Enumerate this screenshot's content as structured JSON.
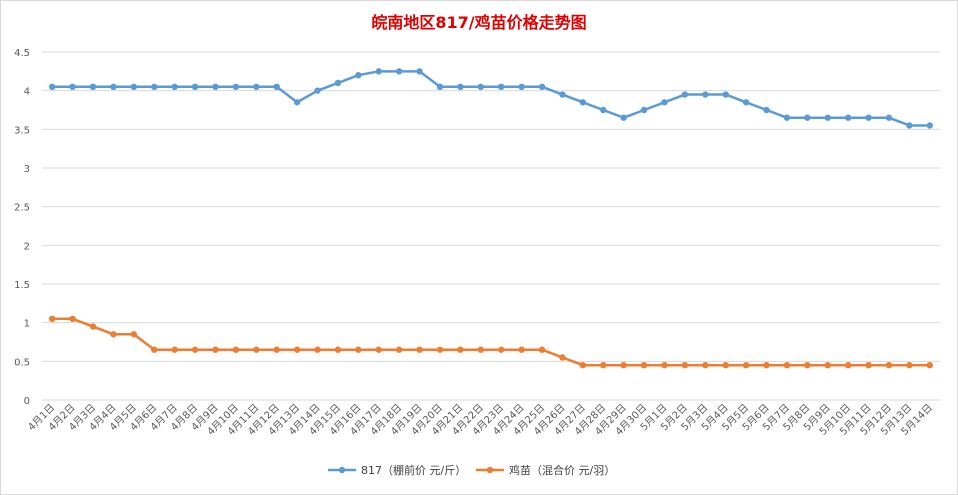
{
  "chart_data": {
    "type": "line",
    "title": "皖南地区817/鸡苗价格走势图",
    "title_color": "#e00000",
    "xlabel": "",
    "ylabel": "",
    "ylim": [
      0,
      4.5
    ],
    "y_ticks": [
      "0",
      "0.5",
      "1",
      "1.5",
      "2",
      "2.5",
      "3",
      "3.5",
      "4",
      "4.5"
    ],
    "grid": "horizontal",
    "legend_position": "bottom",
    "categories": [
      "4月1日",
      "4月2日",
      "4月3日",
      "4月4日",
      "4月5日",
      "4月6日",
      "4月7日",
      "4月8日",
      "4月9日",
      "4月10日",
      "4月11日",
      "4月12日",
      "4月13日",
      "4月14日",
      "4月15日",
      "4月16日",
      "4月17日",
      "4月18日",
      "4月19日",
      "4月20日",
      "4月21日",
      "4月22日",
      "4月23日",
      "4月24日",
      "4月25日",
      "4月26日",
      "4月27日",
      "4月28日",
      "4月29日",
      "4月30日",
      "5月1日",
      "5月2日",
      "5月3日",
      "5月4日",
      "5月5日",
      "5月6日",
      "5月7日",
      "5月8日",
      "5月9日",
      "5月10日",
      "5月11日",
      "5月12日",
      "5月13日",
      "5月14日"
    ],
    "series": [
      {
        "name": "817（棚前价 元/斤）",
        "color": "#5b9bd5",
        "values": [
          4.05,
          4.05,
          4.05,
          4.05,
          4.05,
          4.05,
          4.05,
          4.05,
          4.05,
          4.05,
          4.05,
          4.05,
          3.85,
          4.0,
          4.1,
          4.2,
          4.25,
          4.25,
          4.25,
          4.05,
          4.05,
          4.05,
          4.05,
          4.05,
          4.05,
          3.95,
          3.85,
          3.75,
          3.65,
          3.75,
          3.85,
          3.95,
          3.95,
          3.95,
          3.85,
          3.75,
          3.65,
          3.65,
          3.65,
          3.65,
          3.65,
          3.65,
          3.55,
          3.55
        ]
      },
      {
        "name": "鸡苗（混合价 元/羽）",
        "color": "#ed7d31",
        "values": [
          1.05,
          1.05,
          0.95,
          0.85,
          0.85,
          0.65,
          0.65,
          0.65,
          0.65,
          0.65,
          0.65,
          0.65,
          0.65,
          0.65,
          0.65,
          0.65,
          0.65,
          0.65,
          0.65,
          0.65,
          0.65,
          0.65,
          0.65,
          0.65,
          0.65,
          0.55,
          0.45,
          0.45,
          0.45,
          0.45,
          0.45,
          0.45,
          0.45,
          0.45,
          0.45,
          0.45,
          0.45,
          0.45,
          0.45,
          0.45,
          0.45,
          0.45,
          0.45,
          0.45
        ]
      }
    ]
  }
}
